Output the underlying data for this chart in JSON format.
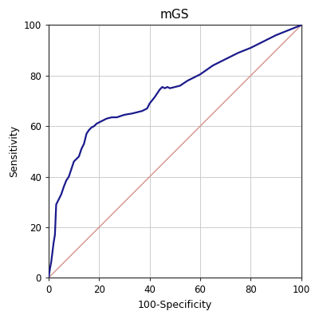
{
  "title": "mGS",
  "xlabel": "100-Specificity",
  "ylabel": "Sensitivity",
  "xlim": [
    0,
    100
  ],
  "ylim": [
    0,
    100
  ],
  "xticks": [
    0,
    20,
    40,
    60,
    80,
    100
  ],
  "yticks": [
    0,
    20,
    40,
    60,
    80,
    100
  ],
  "roc_color": "#1a1a8c",
  "diag_color": "#D4928A",
  "bg_color": "#FFFFFF",
  "fig_bg_color": "#FFFFFF",
  "grid_color": "#CCCCCC",
  "spine_color": "#333333",
  "roc_x": [
    0,
    0.3,
    0.6,
    1.0,
    1.5,
    2.0,
    2.5,
    3.0,
    3.5,
    4.0,
    5.0,
    6.0,
    7.0,
    8.0,
    9.0,
    10.0,
    11.0,
    12.0,
    13.0,
    14.0,
    15.0,
    16.0,
    17.0,
    18.0,
    19.0,
    20.0,
    21.0,
    22.0,
    23.0,
    25.0,
    27.0,
    30.0,
    33.0,
    35.0,
    37.0,
    39.0,
    40.0,
    42.0,
    43.0,
    44.0,
    45.0,
    46.0,
    47.0,
    48.0,
    50.0,
    52.0,
    55.0,
    58.0,
    60.0,
    65.0,
    70.0,
    75.0,
    80.0,
    85.0,
    90.0,
    95.0,
    100.0
  ],
  "roc_y": [
    0,
    2.0,
    4.0,
    6.0,
    10.0,
    14.0,
    17.0,
    29.0,
    30.0,
    31.0,
    33.0,
    36.0,
    38.5,
    40.0,
    43.0,
    46.0,
    47.0,
    48.0,
    51.0,
    53.0,
    57.0,
    58.5,
    59.5,
    60.0,
    61.0,
    61.5,
    62.0,
    62.5,
    63.0,
    63.5,
    63.5,
    64.5,
    65.0,
    65.5,
    66.0,
    67.0,
    69.0,
    71.5,
    73.0,
    74.5,
    75.5,
    75.0,
    75.5,
    75.0,
    75.5,
    76.0,
    78.0,
    79.5,
    80.5,
    84.0,
    86.5,
    89.0,
    91.0,
    93.5,
    96.0,
    98.0,
    100.0
  ],
  "title_fontsize": 11,
  "label_fontsize": 9,
  "tick_fontsize": 8.5,
  "roc_linewidth": 1.6,
  "diag_linewidth": 1.0
}
